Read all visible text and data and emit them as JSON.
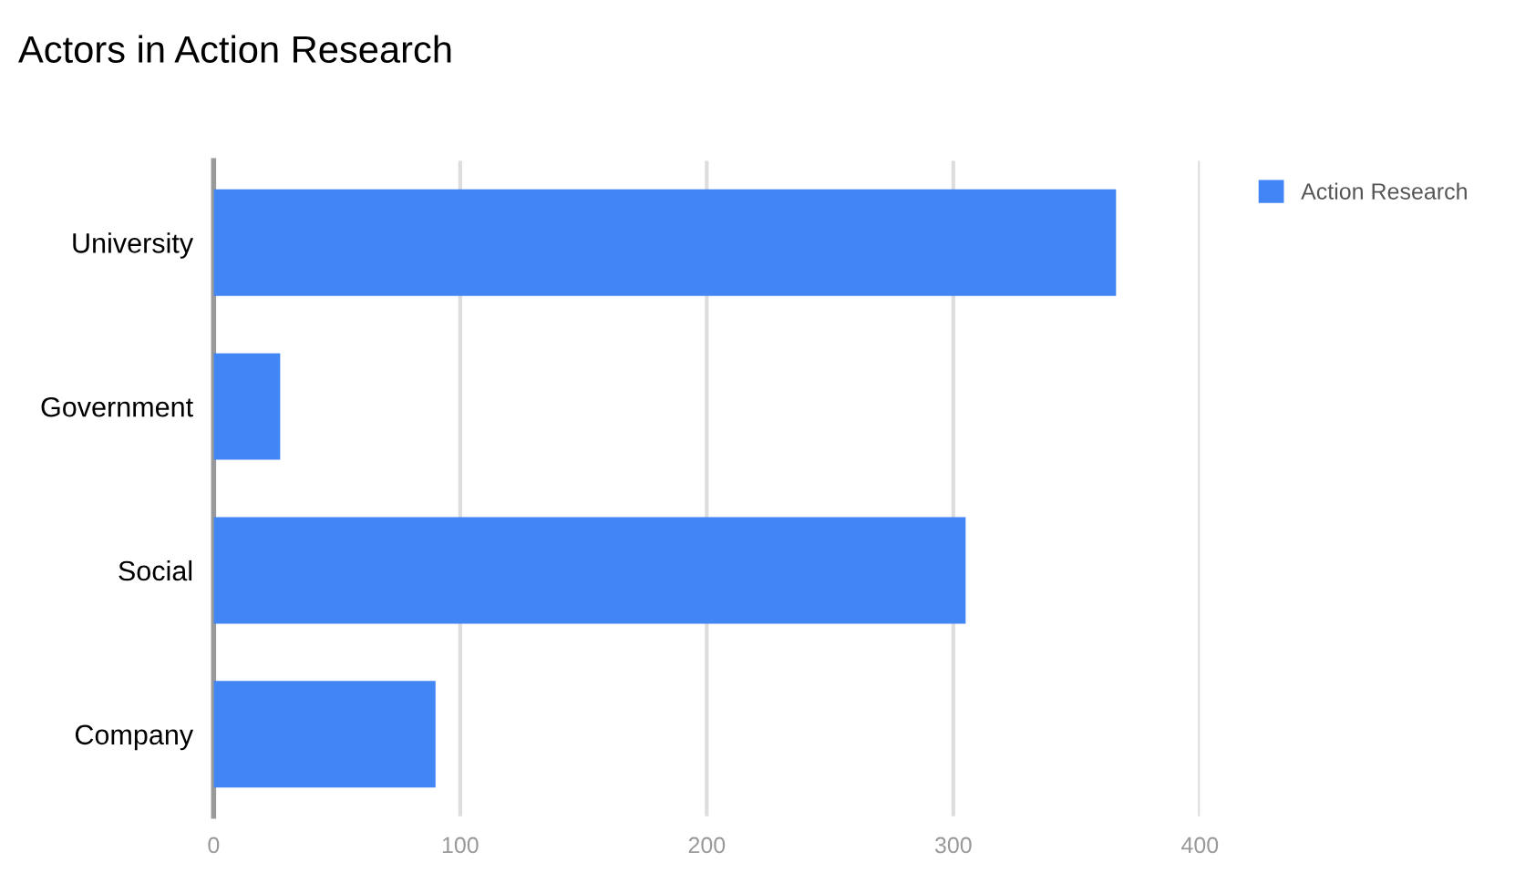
{
  "chart_data": {
    "type": "bar",
    "orientation": "horizontal",
    "title": "Actors in Action Research",
    "categories": [
      "University",
      "Government",
      "Social",
      "Company"
    ],
    "series": [
      {
        "name": "Action Research",
        "color": "#4285f4",
        "values": [
          366,
          27,
          305,
          90
        ]
      }
    ],
    "xlim": [
      0,
      400
    ],
    "xticks": [
      0,
      100,
      200,
      300,
      400
    ],
    "grid": "x",
    "legend": "top right"
  }
}
